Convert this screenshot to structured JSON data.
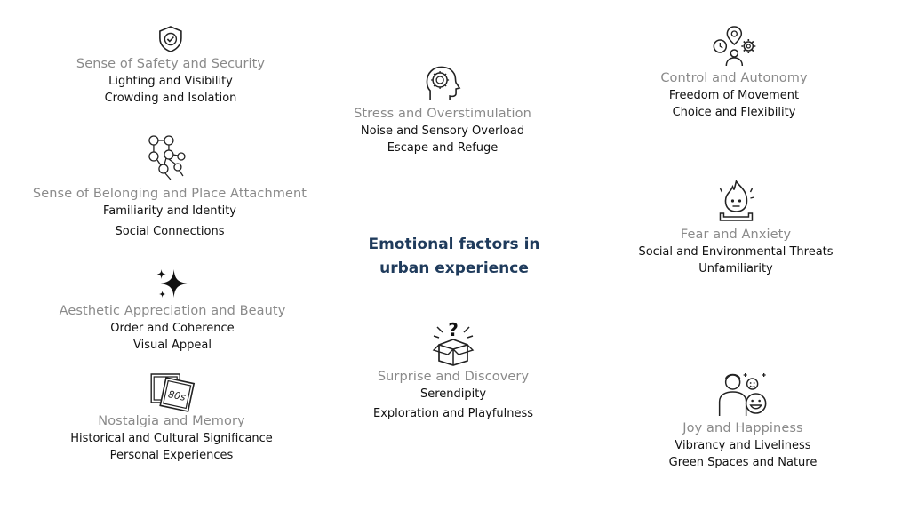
{
  "center_title": {
    "line1": "Emotional factors in",
    "line2": "urban experience"
  },
  "colors": {
    "title": "#8a8a8a",
    "subtitle": "#111111",
    "center": "#1f3b5c"
  },
  "factors": [
    {
      "icon": "shield-check-icon",
      "title": "Sense of Safety and Security",
      "items": [
        "Lighting and Visibility",
        "Crowding and Isolation"
      ]
    },
    {
      "icon": "network-nodes-icon",
      "title": "Sense of Belonging and Place Attachment",
      "items": [
        "Familiarity and Identity",
        "Social Connections"
      ]
    },
    {
      "icon": "sparkle-icon",
      "title": "Aesthetic Appreciation and Beauty",
      "items": [
        "Order and Coherence",
        "Visual Appeal"
      ]
    },
    {
      "icon": "photo-frames-icon",
      "badge": "80s",
      "title": "Nostalgia and Memory",
      "items": [
        "Historical and Cultural Significance",
        "Personal Experiences"
      ]
    },
    {
      "icon": "head-brain-icon",
      "title": "Stress and Overstimulation",
      "items": [
        "Noise and Sensory Overload",
        "Escape and Refuge"
      ]
    },
    {
      "icon": "surprise-box-icon",
      "title": "Surprise and Discovery",
      "items": [
        "Serendipity",
        "Exploration and Playfulness"
      ]
    },
    {
      "icon": "person-gears-icon",
      "title": "Control and Autonomy",
      "items": [
        "Freedom of Movement",
        "Choice and Flexibility"
      ]
    },
    {
      "icon": "flame-person-icon",
      "title": "Fear and Anxiety",
      "items": [
        "Social and Environmental Threats",
        "Unfamiliarity"
      ]
    },
    {
      "icon": "happy-faces-icon",
      "title": "Joy and Happiness",
      "items": [
        "Vibrancy and Liveliness",
        "Green Spaces and Nature"
      ]
    }
  ]
}
